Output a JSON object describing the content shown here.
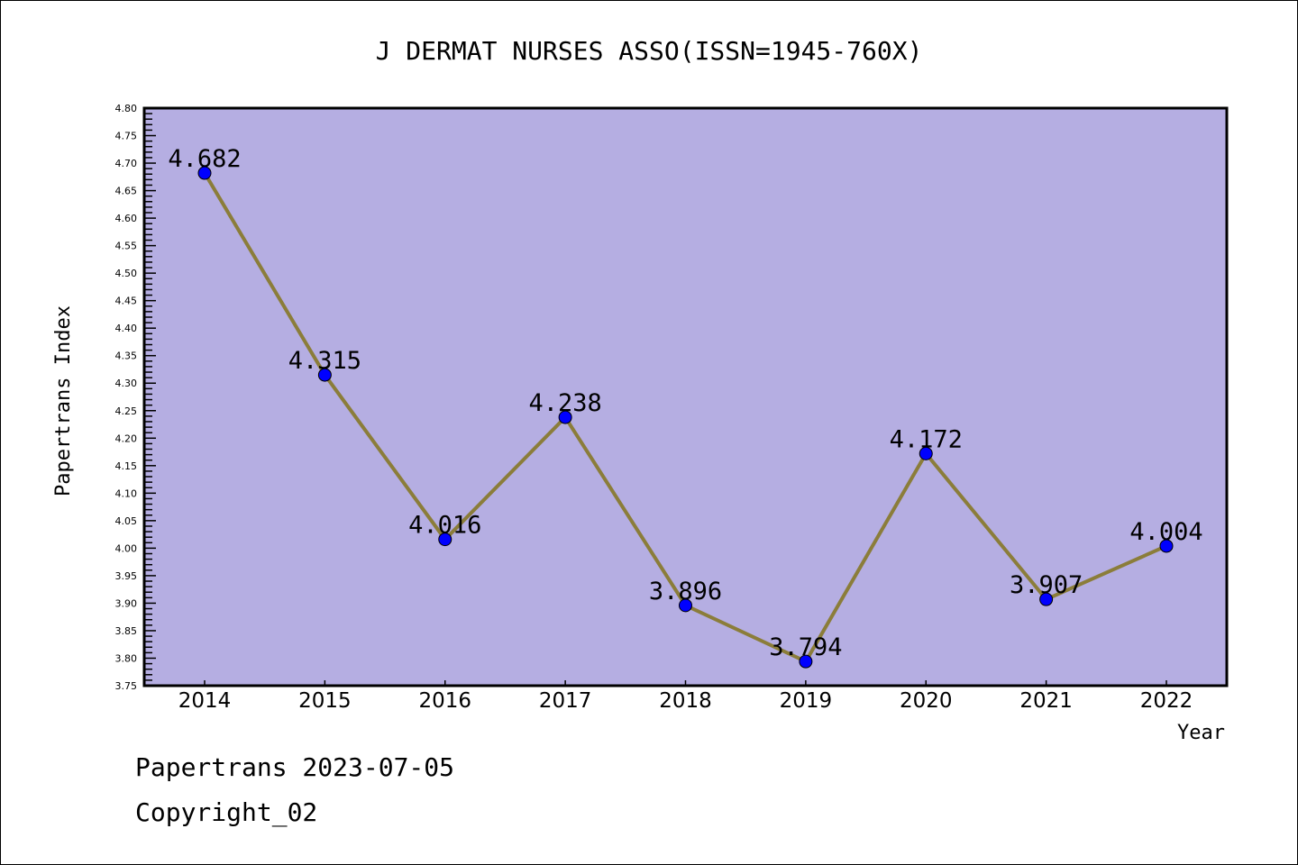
{
  "chart_data": {
    "type": "line",
    "title": "J DERMAT NURSES ASSO(ISSN=1945-760X)",
    "xlabel": "Year",
    "ylabel": "Papertrans Index",
    "categories": [
      "2014",
      "2015",
      "2016",
      "2017",
      "2018",
      "2019",
      "2020",
      "2021",
      "2022"
    ],
    "series": [
      {
        "name": "Papertrans Index",
        "values": [
          4.682,
          4.315,
          4.016,
          4.238,
          3.896,
          3.794,
          4.172,
          3.907,
          4.004
        ]
      }
    ],
    "data_labels": [
      "4.682",
      "4.315",
      "4.016",
      "4.238",
      "3.896",
      "3.794",
      "4.172",
      "3.907",
      "4.004"
    ],
    "ylim": [
      3.75,
      4.8
    ],
    "ytick_step": 0.05,
    "yticks": [
      "3.75",
      "3.80",
      "3.85",
      "3.90",
      "3.95",
      "4.00",
      "4.05",
      "4.10",
      "4.15",
      "4.20",
      "4.25",
      "4.30",
      "4.35",
      "4.40",
      "4.45",
      "4.50",
      "4.55",
      "4.60",
      "4.65",
      "4.70",
      "4.75",
      "4.80"
    ],
    "grid": false,
    "colors": {
      "plot_bg": "#b5aee2",
      "line": "#8b7d3a",
      "marker": "#0000ff"
    }
  },
  "footer": {
    "line1": "Papertrans 2023-07-05",
    "line2": "Copyright_02"
  }
}
